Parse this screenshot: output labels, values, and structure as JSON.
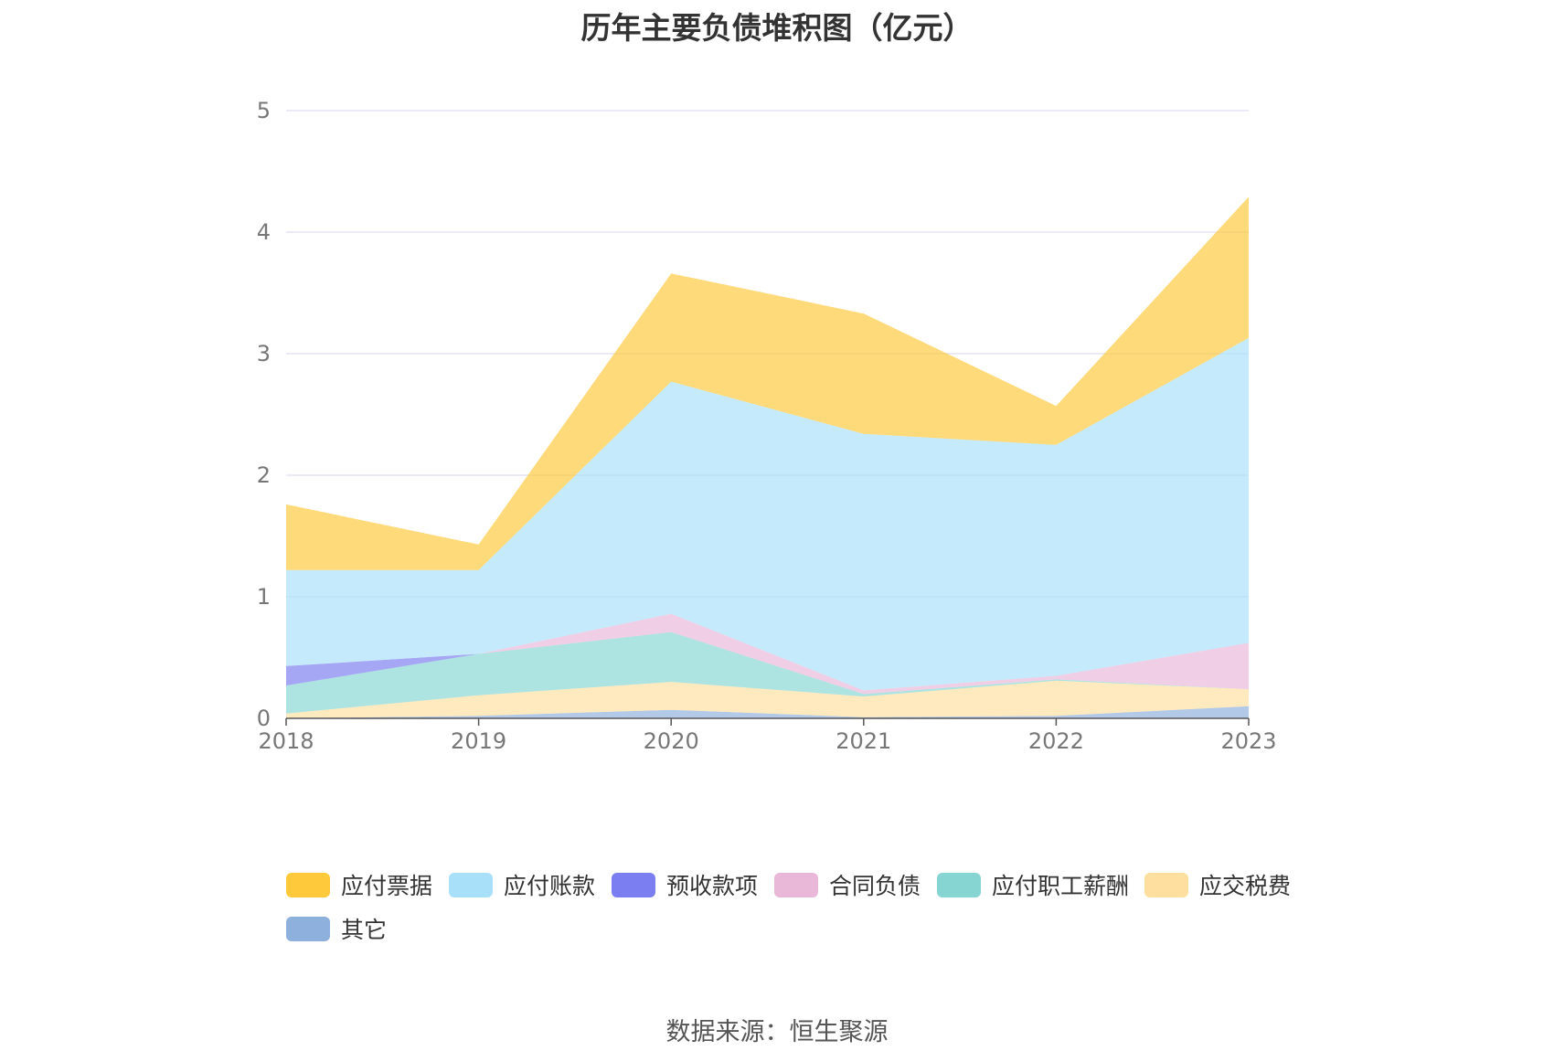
{
  "title": "历年主要负债堆积图（亿元）",
  "source": "数据来源：恒生聚源",
  "chart_data": {
    "type": "area",
    "stacked": true,
    "x": [
      "2018",
      "2019",
      "2020",
      "2021",
      "2022",
      "2023"
    ],
    "ylim": [
      0,
      5
    ],
    "yticks": [
      "0",
      "1",
      "2",
      "3",
      "4",
      "5"
    ],
    "grid": true,
    "legend_position": "bottom",
    "series": [
      {
        "name": "其它",
        "color": "#8eb0dc",
        "values": [
          0.0,
          0.02,
          0.07,
          0.01,
          0.02,
          0.1
        ]
      },
      {
        "name": "应交税费",
        "color": "#ffdf9f",
        "values": [
          0.04,
          0.17,
          0.23,
          0.17,
          0.29,
          0.14
        ]
      },
      {
        "name": "应付职工薪酬",
        "color": "#86d5d3",
        "values": [
          0.23,
          0.34,
          0.41,
          0.02,
          0.01,
          0.0
        ]
      },
      {
        "name": "合同负债",
        "color": "#e9b7d8",
        "values": [
          0.0,
          0.0,
          0.15,
          0.03,
          0.03,
          0.38
        ]
      },
      {
        "name": "预收款项",
        "color": "#7b7ef0",
        "values": [
          0.16,
          0.0,
          0.0,
          0.0,
          0.0,
          0.0
        ]
      },
      {
        "name": "应付账款",
        "color": "#a9e0f9",
        "values": [
          0.79,
          0.69,
          1.91,
          2.11,
          1.9,
          2.51
        ]
      },
      {
        "name": "应付票据",
        "color": "#ffc93c",
        "values": [
          0.54,
          0.21,
          0.89,
          0.99,
          0.32,
          1.16
        ]
      }
    ]
  },
  "legend": {
    "items": [
      {
        "name": "应付票据",
        "color": "#ffc93c"
      },
      {
        "name": "应付账款",
        "color": "#a9e0f9"
      },
      {
        "name": "预收款项",
        "color": "#7b7ef0"
      },
      {
        "name": "合同负债",
        "color": "#e9b7d8"
      },
      {
        "name": "应付职工薪酬",
        "color": "#86d5d3"
      },
      {
        "name": "应交税费",
        "color": "#ffdf9f"
      },
      {
        "name": "其它",
        "color": "#8eb0dc"
      }
    ]
  }
}
